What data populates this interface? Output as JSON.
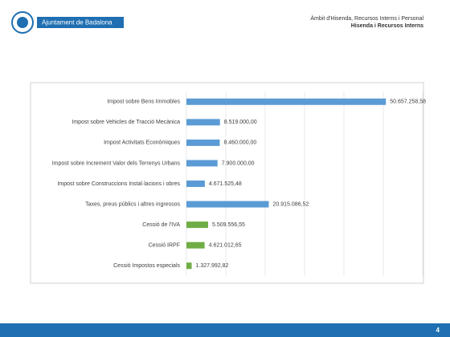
{
  "header": {
    "logo_text": "Ajuntament de Badalona",
    "line1": "Àmbit d'Hisenda, Recursos Interns i Personal",
    "line2": "Hisenda i Recursos Interns"
  },
  "footer": {
    "page": 4
  },
  "chart_data": {
    "type": "barh",
    "categories": [
      "Impost sobre Bens Immobles",
      "Impost sobre Vehicles de Tracció Mecànica",
      "Impost Activitats Econòmiques",
      "Impost sobre Increment Valor dels Terrenys Urbans",
      "Impost sobre Construccions Instal·lacions i obres",
      "Taxes, preus públics i altres ingressos",
      "Cessió de l'IVA",
      "Cessió IRPF",
      "Cessió Impostos especials"
    ],
    "values": [
      50657258.58,
      8519000,
      8460000,
      7900000,
      4671525.48,
      20915086.52,
      5509556.55,
      4621012.65,
      1327992.82
    ],
    "value_labels": [
      "50.657.258,58",
      "8.519.000,00",
      "8.460.000,00",
      "7.900.000,00",
      "4.671.525,48",
      "20.915.086,52",
      "5.509.556,55",
      "4.621.012,65",
      "1.327.992,82"
    ],
    "colors": [
      "#5b9bd5",
      "#5b9bd5",
      "#5b9bd5",
      "#5b9bd5",
      "#5b9bd5",
      "#5b9bd5",
      "#70ad47",
      "#70ad47",
      "#70ad47"
    ],
    "xlim": [
      0,
      60000000
    ],
    "xticks": [
      0,
      10000000,
      20000000,
      30000000,
      40000000,
      50000000,
      60000000
    ],
    "grid": true
  }
}
